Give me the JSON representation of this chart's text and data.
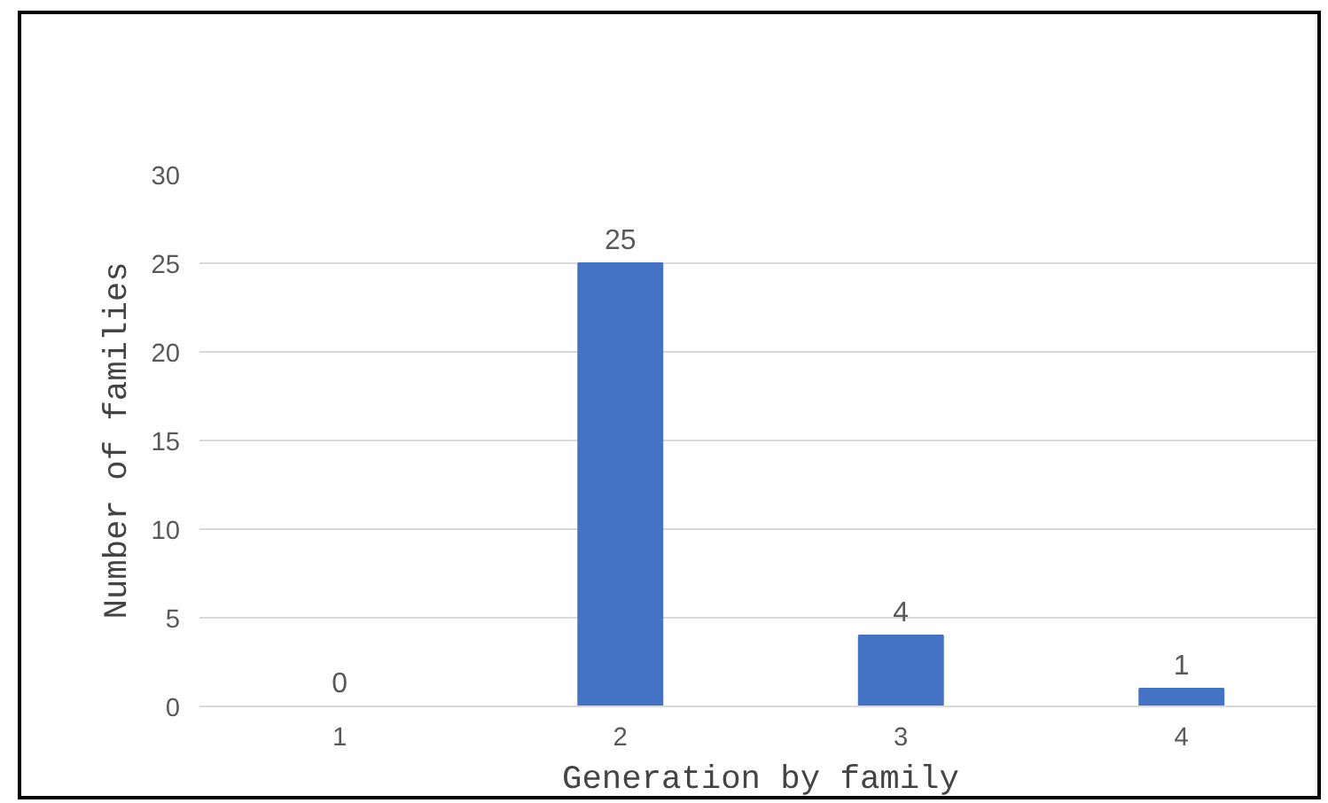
{
  "chart_data": {
    "type": "bar",
    "categories": [
      "1",
      "2",
      "3",
      "4"
    ],
    "values": [
      0,
      25,
      4,
      1
    ],
    "color": "#4472c4",
    "xlabel": "Generation by family",
    "ylabel": "Number of families",
    "ylim": [
      0,
      30
    ],
    "yticks": [
      0,
      5,
      10,
      15,
      20,
      25,
      30
    ],
    "grid": "y",
    "data_labels": true
  }
}
